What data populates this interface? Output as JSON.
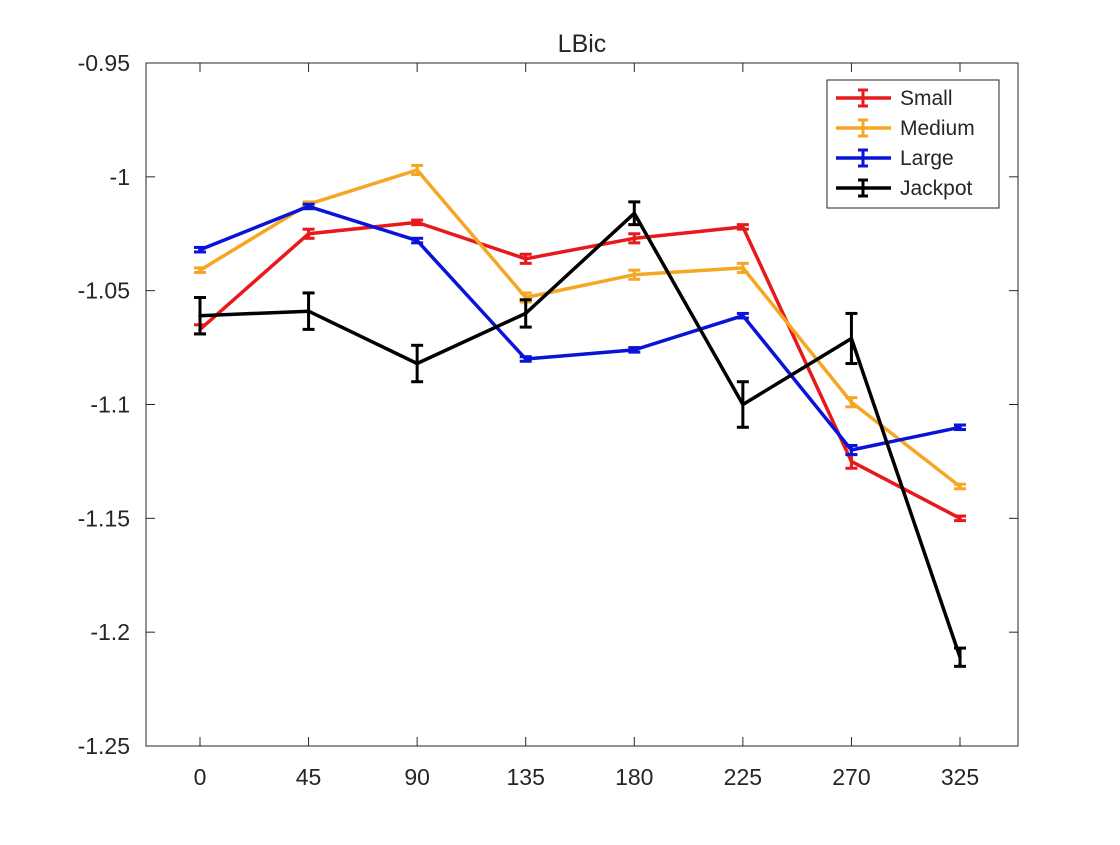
{
  "chart_data": {
    "type": "line",
    "title": "LBic",
    "xlabel": "",
    "ylabel": "",
    "x": [
      0,
      45,
      90,
      135,
      180,
      225,
      270,
      325
    ],
    "x_tick_labels": [
      "0",
      "45",
      "90",
      "135",
      "180",
      "225",
      "270",
      "325"
    ],
    "ylim": [
      -1.25,
      -0.95
    ],
    "y_ticks": [
      -0.95,
      -1,
      -1.05,
      -1.1,
      -1.15,
      -1.2,
      -1.25
    ],
    "y_tick_labels": [
      "-0.95",
      "-1",
      "-1.05",
      "-1.1",
      "-1.15",
      "-1.2",
      "-1.25"
    ],
    "grid": false,
    "error_bars": true,
    "legend": {
      "position": "top-right",
      "entries": [
        "Small",
        "Medium",
        "Large",
        "Jackpot"
      ]
    },
    "series": [
      {
        "name": "Small",
        "color": "#e8191d",
        "values": [
          -1.067,
          -1.025,
          -1.02,
          -1.036,
          -1.027,
          -1.022,
          -1.125,
          -1.15
        ],
        "errors": [
          0.002,
          0.002,
          0.001,
          0.002,
          0.002,
          0.001,
          0.003,
          0.001
        ]
      },
      {
        "name": "Medium",
        "color": "#f5a623",
        "values": [
          -1.041,
          -1.012,
          -0.997,
          -1.053,
          -1.043,
          -1.04,
          -1.099,
          -1.136
        ],
        "errors": [
          0.001,
          0.001,
          0.002,
          0.002,
          0.002,
          0.002,
          0.002,
          0.001
        ]
      },
      {
        "name": "Large",
        "color": "#0a14d9",
        "values": [
          -1.032,
          -1.013,
          -1.028,
          -1.08,
          -1.076,
          -1.061,
          -1.12,
          -1.11
        ],
        "errors": [
          0.001,
          0.001,
          0.001,
          0.001,
          0.001,
          0.001,
          0.002,
          0.001
        ]
      },
      {
        "name": "Jackpot",
        "color": "#000000",
        "values": [
          -1.061,
          -1.059,
          -1.082,
          -1.06,
          -1.016,
          -1.1,
          -1.071,
          -1.211
        ],
        "errors": [
          0.008,
          0.008,
          0.008,
          0.006,
          0.005,
          0.01,
          0.011,
          0.004
        ]
      }
    ]
  }
}
